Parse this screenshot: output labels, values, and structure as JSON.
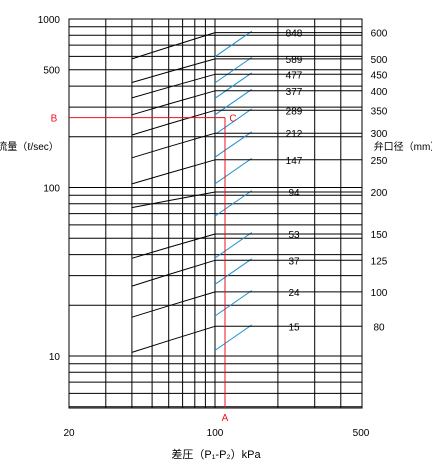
{
  "chart_data": {
    "type": "line",
    "xlabel": "差圧（P₁-P₂）kPa",
    "ylabel": "流量（ℓ/sec）",
    "right_axis_label": "弁口径（mm）",
    "xscale": "log",
    "yscale": "log",
    "xlim": [
      20,
      500
    ],
    "ylim": [
      5,
      1000
    ],
    "x_ticks": [
      "20",
      "100",
      "500"
    ],
    "x_tick_values": [
      20,
      100,
      500
    ],
    "y_ticks": [
      "1000",
      "500",
      "100",
      "10"
    ],
    "y_tick_values": [
      1000,
      500,
      100,
      10
    ],
    "grid": true,
    "colors": {
      "curve": "#000000",
      "extension": "#1a8fd0",
      "guide": "#e8141e",
      "grid": "#000000"
    },
    "series": [
      {
        "cv": "848",
        "size": "600",
        "flow_at_40kPa": 580,
        "flow_at_100kPa": 830
      },
      {
        "cv": "589",
        "size": "500",
        "flow_at_40kPa": 420,
        "flow_at_100kPa": 580
      },
      {
        "cv": "477",
        "size": "450",
        "flow_at_40kPa": 340,
        "flow_at_100kPa": 470
      },
      {
        "cv": "377",
        "size": "400",
        "flow_at_40kPa": 270,
        "flow_at_100kPa": 375
      },
      {
        "cv": "289",
        "size": "350",
        "flow_at_40kPa": 205,
        "flow_at_100kPa": 287
      },
      {
        "cv": "212",
        "size": "300",
        "flow_at_40kPa": 150,
        "flow_at_100kPa": 210
      },
      {
        "cv": "147",
        "size": "250",
        "flow_at_40kPa": 105,
        "flow_at_100kPa": 146
      },
      {
        "cv": "94",
        "size": "200",
        "flow_at_40kPa": 76,
        "flow_at_100kPa": 94
      },
      {
        "cv": "53",
        "size": "150",
        "flow_at_40kPa": 38,
        "flow_at_100kPa": 53
      },
      {
        "cv": "37",
        "size": "125",
        "flow_at_40kPa": 26,
        "flow_at_100kPa": 37
      },
      {
        "cv": "24",
        "size": "100",
        "flow_at_40kPa": 17,
        "flow_at_100kPa": 24
      },
      {
        "cv": "15",
        "size": "80",
        "flow_at_40kPa": 10.5,
        "flow_at_100kPa": 15
      }
    ],
    "annotations": [
      {
        "label": "A",
        "x": 100
      },
      {
        "label": "B",
        "y": 260
      },
      {
        "label": "C",
        "x": 100,
        "y": 260
      }
    ]
  }
}
